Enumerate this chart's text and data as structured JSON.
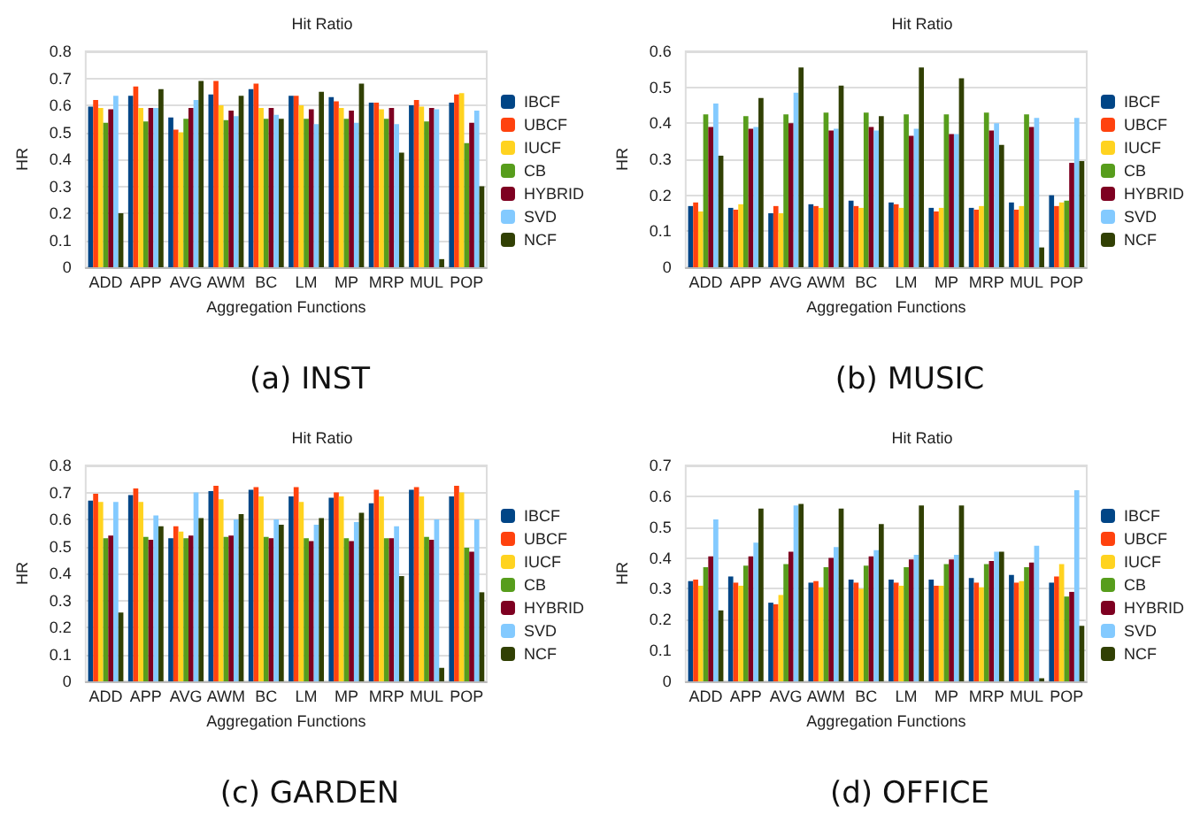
{
  "chart_data": [
    {
      "type": "bar",
      "title": "Hit Ratio",
      "xlabel": "Aggregation Functions",
      "ylabel": "HR",
      "annotations": [
        "(a) INST"
      ],
      "categories": [
        "ADD",
        "APP",
        "AVG",
        "AWM",
        "BC",
        "LM",
        "MP",
        "MRP",
        "MUL",
        "POP"
      ],
      "ylim": [
        0,
        0.8
      ],
      "yticks": [
        0,
        0.1,
        0.2,
        0.3,
        0.4,
        0.5,
        0.6,
        0.7,
        0.8
      ],
      "grid": "y",
      "legend": "right",
      "series": [
        {
          "name": "IBCF",
          "color": "#004586",
          "values": [
            0.595,
            0.635,
            0.555,
            0.64,
            0.66,
            0.635,
            0.63,
            0.61,
            0.6,
            0.61
          ]
        },
        {
          "name": "UBCF",
          "color": "#ff420e",
          "values": [
            0.62,
            0.67,
            0.51,
            0.69,
            0.68,
            0.635,
            0.615,
            0.61,
            0.62,
            0.64
          ]
        },
        {
          "name": "IUCF",
          "color": "#ffd320",
          "values": [
            0.59,
            0.59,
            0.5,
            0.6,
            0.59,
            0.6,
            0.59,
            0.585,
            0.595,
            0.645
          ]
        },
        {
          "name": "CB",
          "color": "#579d1c",
          "values": [
            0.535,
            0.54,
            0.55,
            0.545,
            0.55,
            0.55,
            0.55,
            0.55,
            0.54,
            0.46
          ]
        },
        {
          "name": "HYBRID",
          "color": "#7e0021",
          "values": [
            0.585,
            0.59,
            0.59,
            0.58,
            0.59,
            0.585,
            0.58,
            0.59,
            0.59,
            0.535
          ]
        },
        {
          "name": "SVD",
          "color": "#83caff",
          "values": [
            0.635,
            0.59,
            0.62,
            0.56,
            0.565,
            0.53,
            0.535,
            0.53,
            0.585,
            0.58
          ]
        },
        {
          "name": "NCF",
          "color": "#314004",
          "values": [
            0.2,
            0.66,
            0.69,
            0.635,
            0.55,
            0.65,
            0.68,
            0.425,
            0.03,
            0.3
          ]
        }
      ]
    },
    {
      "type": "bar",
      "title": "Hit Ratio",
      "xlabel": "Aggregation Functions",
      "ylabel": "HR",
      "annotations": [
        "(b) MUSIC"
      ],
      "categories": [
        "ADD",
        "APP",
        "AVG",
        "AWM",
        "BC",
        "LM",
        "MP",
        "MRP",
        "MUL",
        "POP"
      ],
      "ylim": [
        0,
        0.6
      ],
      "yticks": [
        0,
        0.1,
        0.2,
        0.3,
        0.4,
        0.5,
        0.6
      ],
      "grid": "y",
      "legend": "right",
      "series": [
        {
          "name": "IBCF",
          "color": "#004586",
          "values": [
            0.17,
            0.165,
            0.15,
            0.175,
            0.185,
            0.18,
            0.165,
            0.165,
            0.18,
            0.2
          ]
        },
        {
          "name": "UBCF",
          "color": "#ff420e",
          "values": [
            0.18,
            0.16,
            0.17,
            0.17,
            0.17,
            0.175,
            0.155,
            0.16,
            0.16,
            0.17
          ]
        },
        {
          "name": "IUCF",
          "color": "#ffd320",
          "values": [
            0.155,
            0.175,
            0.15,
            0.165,
            0.165,
            0.165,
            0.165,
            0.17,
            0.17,
            0.18
          ]
        },
        {
          "name": "CB",
          "color": "#579d1c",
          "values": [
            0.425,
            0.42,
            0.425,
            0.43,
            0.43,
            0.425,
            0.425,
            0.43,
            0.425,
            0.185
          ]
        },
        {
          "name": "HYBRID",
          "color": "#7e0021",
          "values": [
            0.39,
            0.385,
            0.4,
            0.38,
            0.39,
            0.365,
            0.37,
            0.38,
            0.39,
            0.29
          ]
        },
        {
          "name": "SVD",
          "color": "#83caff",
          "values": [
            0.455,
            0.39,
            0.485,
            0.385,
            0.38,
            0.385,
            0.37,
            0.4,
            0.415,
            0.415
          ]
        },
        {
          "name": "NCF",
          "color": "#314004",
          "values": [
            0.31,
            0.47,
            0.555,
            0.505,
            0.42,
            0.555,
            0.525,
            0.34,
            0.055,
            0.295
          ]
        }
      ]
    },
    {
      "type": "bar",
      "title": "Hit Ratio",
      "xlabel": "Aggregation Functions",
      "ylabel": "HR",
      "annotations": [
        "(c) GARDEN"
      ],
      "categories": [
        "ADD",
        "APP",
        "AVG",
        "AWM",
        "BC",
        "LM",
        "MP",
        "MRP",
        "MUL",
        "POP"
      ],
      "ylim": [
        0,
        0.8
      ],
      "yticks": [
        0,
        0.1,
        0.2,
        0.3,
        0.4,
        0.5,
        0.6,
        0.7,
        0.8
      ],
      "grid": "y",
      "legend": "right",
      "series": [
        {
          "name": "IBCF",
          "color": "#004586",
          "values": [
            0.67,
            0.69,
            0.53,
            0.705,
            0.71,
            0.685,
            0.68,
            0.66,
            0.71,
            0.685
          ]
        },
        {
          "name": "UBCF",
          "color": "#ff420e",
          "values": [
            0.695,
            0.715,
            0.575,
            0.725,
            0.72,
            0.72,
            0.7,
            0.71,
            0.72,
            0.725
          ]
        },
        {
          "name": "IUCF",
          "color": "#ffd320",
          "values": [
            0.665,
            0.665,
            0.555,
            0.675,
            0.685,
            0.665,
            0.685,
            0.685,
            0.685,
            0.7
          ]
        },
        {
          "name": "CB",
          "color": "#579d1c",
          "values": [
            0.53,
            0.535,
            0.53,
            0.535,
            0.535,
            0.53,
            0.53,
            0.53,
            0.535,
            0.495
          ]
        },
        {
          "name": "HYBRID",
          "color": "#7e0021",
          "values": [
            0.54,
            0.525,
            0.54,
            0.54,
            0.53,
            0.52,
            0.52,
            0.53,
            0.525,
            0.48
          ]
        },
        {
          "name": "SVD",
          "color": "#83caff",
          "values": [
            0.665,
            0.615,
            0.7,
            0.6,
            0.6,
            0.58,
            0.59,
            0.575,
            0.6,
            0.6
          ]
        },
        {
          "name": "NCF",
          "color": "#314004",
          "values": [
            0.255,
            0.575,
            0.605,
            0.62,
            0.58,
            0.605,
            0.625,
            0.39,
            0.05,
            0.33
          ]
        }
      ]
    },
    {
      "type": "bar",
      "title": "Hit Ratio",
      "xlabel": "Aggregation Functions",
      "ylabel": "HR",
      "annotations": [
        "(d) OFFICE"
      ],
      "categories": [
        "ADD",
        "APP",
        "AVG",
        "AWM",
        "BC",
        "LM",
        "MP",
        "MRP",
        "MUL",
        "POP"
      ],
      "ylim": [
        0,
        0.7
      ],
      "yticks": [
        0,
        0.1,
        0.2,
        0.3,
        0.4,
        0.5,
        0.6,
        0.7
      ],
      "grid": "y",
      "legend": "right",
      "series": [
        {
          "name": "IBCF",
          "color": "#004586",
          "values": [
            0.325,
            0.34,
            0.255,
            0.32,
            0.33,
            0.33,
            0.33,
            0.335,
            0.345,
            0.32
          ]
        },
        {
          "name": "UBCF",
          "color": "#ff420e",
          "values": [
            0.33,
            0.32,
            0.25,
            0.325,
            0.32,
            0.32,
            0.31,
            0.32,
            0.32,
            0.34
          ]
        },
        {
          "name": "IUCF",
          "color": "#ffd320",
          "values": [
            0.31,
            0.31,
            0.28,
            0.305,
            0.3,
            0.31,
            0.31,
            0.305,
            0.325,
            0.38
          ]
        },
        {
          "name": "CB",
          "color": "#579d1c",
          "values": [
            0.37,
            0.375,
            0.38,
            0.37,
            0.375,
            0.37,
            0.38,
            0.38,
            0.37,
            0.275
          ]
        },
        {
          "name": "HYBRID",
          "color": "#7e0021",
          "values": [
            0.405,
            0.405,
            0.42,
            0.4,
            0.405,
            0.395,
            0.395,
            0.39,
            0.385,
            0.29
          ]
        },
        {
          "name": "SVD",
          "color": "#83caff",
          "values": [
            0.525,
            0.45,
            0.57,
            0.435,
            0.425,
            0.41,
            0.41,
            0.42,
            0.44,
            0.62
          ]
        },
        {
          "name": "NCF",
          "color": "#314004",
          "values": [
            0.23,
            0.56,
            0.575,
            0.56,
            0.51,
            0.57,
            0.57,
            0.42,
            0.01,
            0.18
          ]
        }
      ]
    }
  ]
}
